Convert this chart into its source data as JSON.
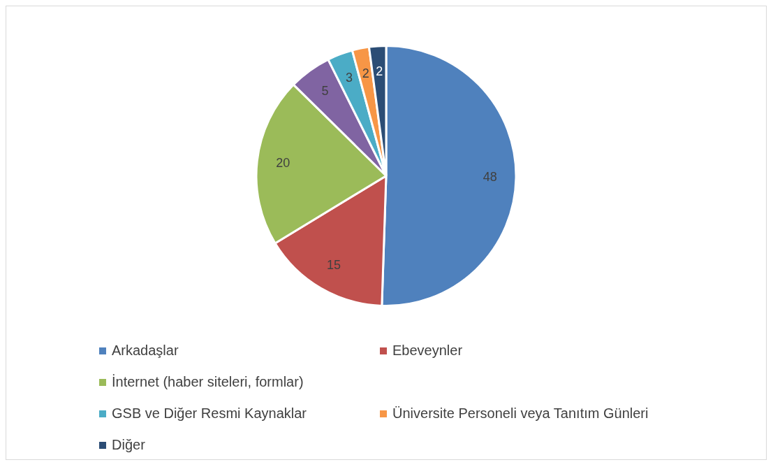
{
  "chart_data": {
    "type": "pie",
    "categories": [
      "Arkadaşlar",
      "Ebeveynler",
      "İnternet (haber siteleri, formlar)",
      null,
      "GSB ve Diğer Resmi Kaynaklar",
      "Üniversite Personeli veya Tanıtım Günleri",
      "Diğer"
    ],
    "values": [
      48,
      15,
      20,
      5,
      3,
      2,
      2
    ],
    "colors": [
      "#4f81bd",
      "#c0504d",
      "#9bbb59",
      "#8064a2",
      "#4bacc6",
      "#f79646",
      "#2c4d75"
    ],
    "data_labels": true,
    "legend": "bottom"
  }
}
